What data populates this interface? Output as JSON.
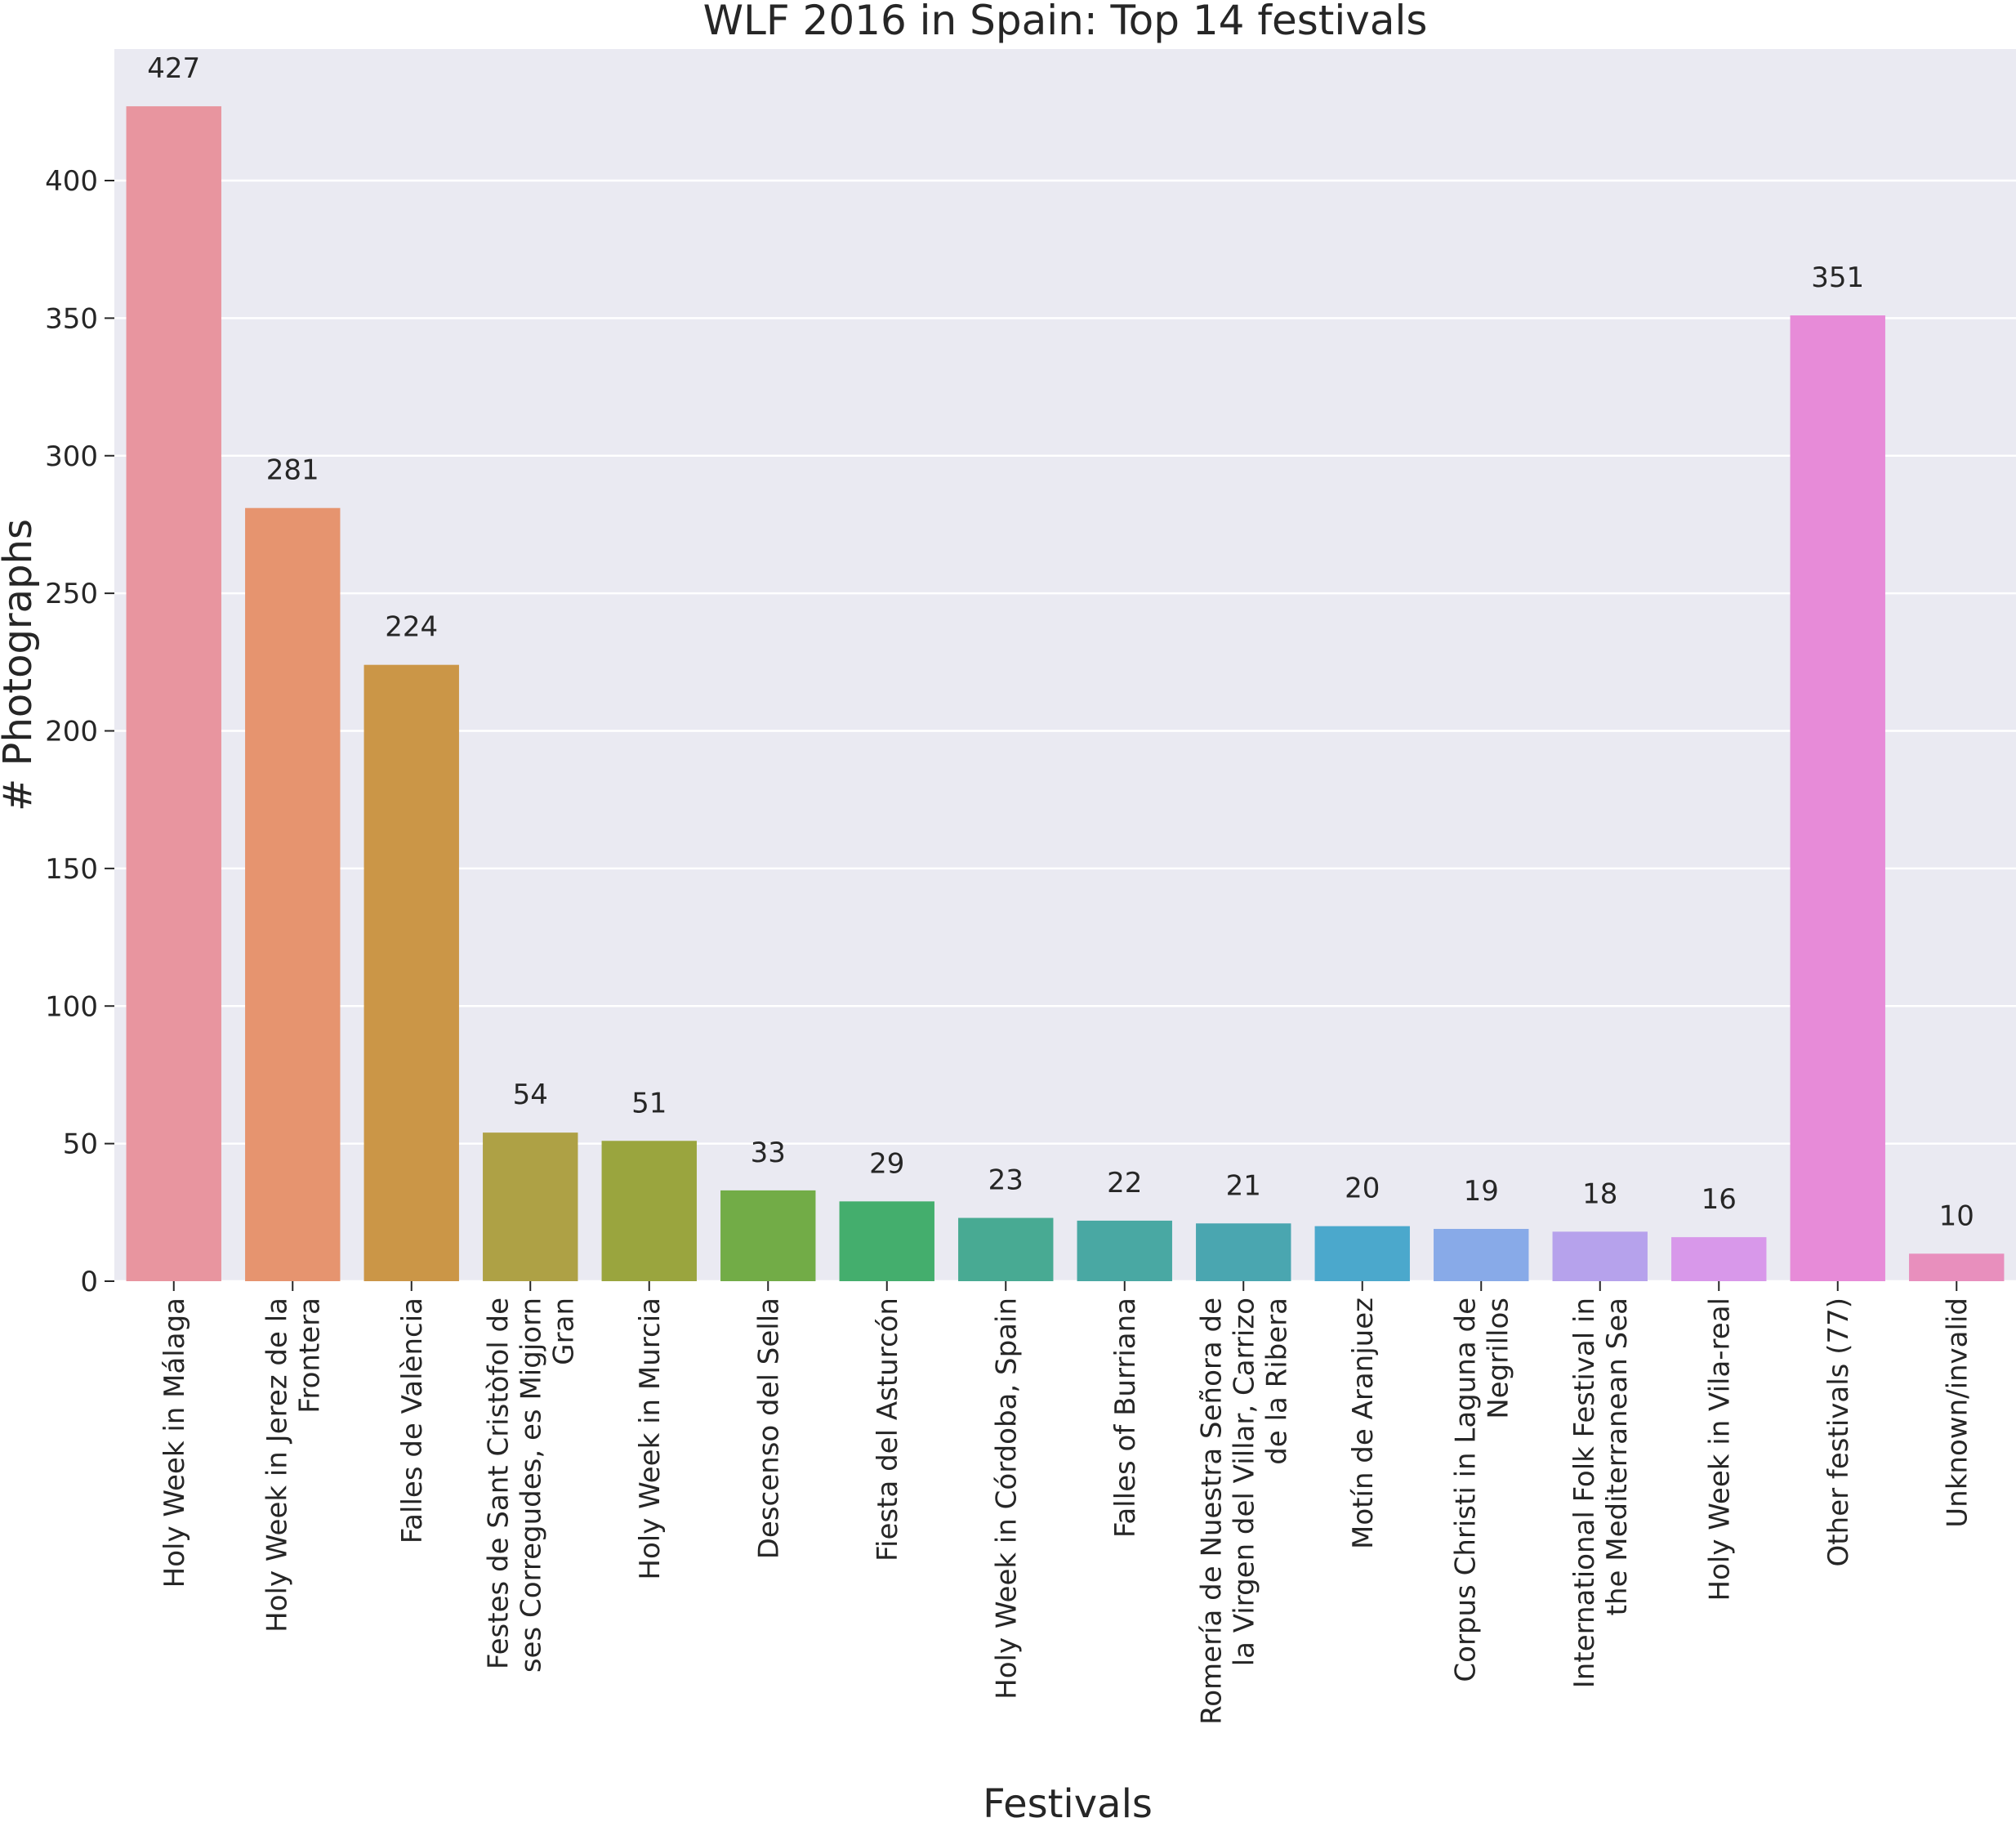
{
  "chart_data": {
    "type": "bar",
    "title": "WLF 2016 in Spain: Top 14 festivals",
    "xlabel": "Festivals",
    "ylabel": "# Photographs",
    "ylim": [
      0,
      450
    ],
    "yticks": [
      0,
      50,
      100,
      150,
      200,
      250,
      300,
      350,
      400
    ],
    "grid": true,
    "categories": [
      [
        "Holy Week in Málaga"
      ],
      [
        "Holy Week in Jerez de la",
        "Frontera"
      ],
      [
        "Falles de València"
      ],
      [
        "Festes de Sant Cristòfol de",
        "ses Corregudes, es Migjorn",
        "Gran"
      ],
      [
        "Holy Week in Murcia"
      ],
      [
        "Descenso del Sella"
      ],
      [
        "Fiesta del Asturcón"
      ],
      [
        "Holy Week in Córdoba, Spain"
      ],
      [
        "Falles of Burriana"
      ],
      [
        "Romería de Nuestra Señora de",
        "la Virgen del Villar, Carrizo",
        "de la Ribera"
      ],
      [
        "Motín de Aranjuez"
      ],
      [
        "Corpus Christi in Laguna de",
        "Negrillos"
      ],
      [
        "International Folk Festival in",
        "the Mediterranean Sea"
      ],
      [
        "Holy Week in Vila-real"
      ],
      [
        "Other festivals (77)"
      ],
      [
        "Unknown/invalid"
      ]
    ],
    "values": [
      427,
      281,
      224,
      54,
      51,
      33,
      29,
      23,
      22,
      21,
      20,
      19,
      18,
      16,
      351,
      10
    ],
    "colors": [
      "#e8959f",
      "#e6946f",
      "#cb9647",
      "#aea145",
      "#9aa53e",
      "#72ac47",
      "#44ae6d",
      "#48aa93",
      "#49a8a3",
      "#4aa6b0",
      "#4ba8cc",
      "#88aae8",
      "#b6a2ec",
      "#d898ea",
      "#e78bd8",
      "#e88fbd"
    ]
  }
}
